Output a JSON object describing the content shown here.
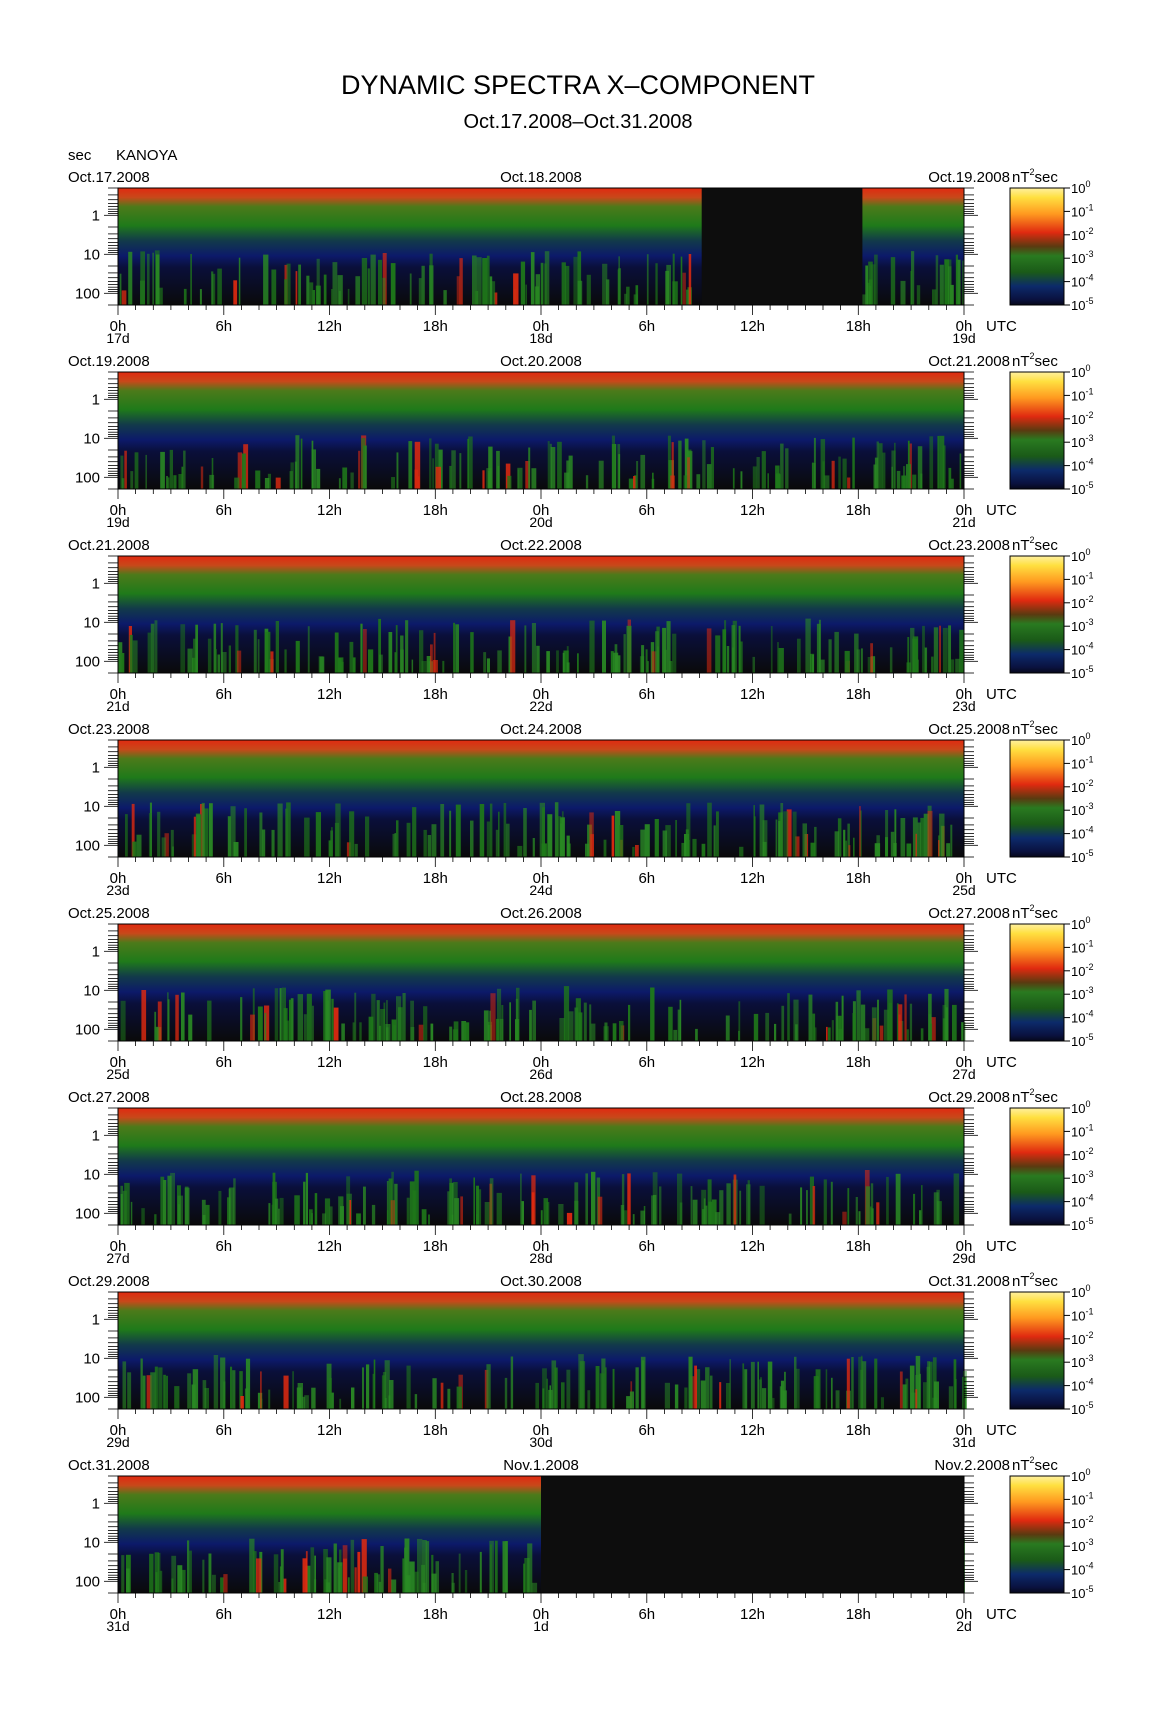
{
  "title": "DYNAMIC SPECTRA X–COMPONENT",
  "subtitle": "Oct.17.2008–Oct.31.2008",
  "y_unit_label": "sec",
  "station": "KANOYA",
  "colorbar_unit": "nT",
  "colorbar_unit_exp": "2",
  "colorbar_unit_suffix": "sec",
  "colorbar_exponents": [
    "0",
    "-1",
    "-2",
    "-3",
    "-4",
    "-5"
  ],
  "colorbar_base": "10",
  "x_unit_label": "UTC",
  "colors": {
    "background_black": "#0a0a0a",
    "low_blue": "#0c1a6a",
    "mid_green": "#1f7a1a",
    "high_red": "#e02a10",
    "peak_yellow": "#ffe040"
  },
  "chart_data": [
    {
      "type": "heatmap",
      "date_left": "Oct.17.2008",
      "date_mid": "Oct.18.2008",
      "date_right": "Oct.19.2008",
      "day_labels": [
        "17d",
        "18d",
        "19d"
      ],
      "hour_labels": [
        "0h",
        "6h",
        "12h",
        "18h",
        "0h",
        "6h",
        "12h",
        "18h",
        "0h"
      ],
      "y_ticks": [
        "1",
        "10",
        "100"
      ],
      "ylim_sec": [
        0.2,
        200
      ],
      "scale": "log",
      "data_gap_frac": [
        [
          0.69,
          0.88
        ]
      ]
    },
    {
      "type": "heatmap",
      "date_left": "Oct.19.2008",
      "date_mid": "Oct.20.2008",
      "date_right": "Oct.21.2008",
      "day_labels": [
        "19d",
        "20d",
        "21d"
      ],
      "hour_labels": [
        "0h",
        "6h",
        "12h",
        "18h",
        "0h",
        "6h",
        "12h",
        "18h",
        "0h"
      ],
      "y_ticks": [
        "1",
        "10",
        "100"
      ],
      "ylim_sec": [
        0.2,
        200
      ],
      "scale": "log",
      "data_gap_frac": []
    },
    {
      "type": "heatmap",
      "date_left": "Oct.21.2008",
      "date_mid": "Oct.22.2008",
      "date_right": "Oct.23.2008",
      "day_labels": [
        "21d",
        "22d",
        "23d"
      ],
      "hour_labels": [
        "0h",
        "6h",
        "12h",
        "18h",
        "0h",
        "6h",
        "12h",
        "18h",
        "0h"
      ],
      "y_ticks": [
        "1",
        "10",
        "100"
      ],
      "ylim_sec": [
        0.2,
        200
      ],
      "scale": "log",
      "data_gap_frac": []
    },
    {
      "type": "heatmap",
      "date_left": "Oct.23.2008",
      "date_mid": "Oct.24.2008",
      "date_right": "Oct.25.2008",
      "day_labels": [
        "23d",
        "24d",
        "25d"
      ],
      "hour_labels": [
        "0h",
        "6h",
        "12h",
        "18h",
        "0h",
        "6h",
        "12h",
        "18h",
        "0h"
      ],
      "y_ticks": [
        "1",
        "10",
        "100"
      ],
      "ylim_sec": [
        0.2,
        200
      ],
      "scale": "log",
      "data_gap_frac": []
    },
    {
      "type": "heatmap",
      "date_left": "Oct.25.2008",
      "date_mid": "Oct.26.2008",
      "date_right": "Oct.27.2008",
      "day_labels": [
        "25d",
        "26d",
        "27d"
      ],
      "hour_labels": [
        "0h",
        "6h",
        "12h",
        "18h",
        "0h",
        "6h",
        "12h",
        "18h",
        "0h"
      ],
      "y_ticks": [
        "1",
        "10",
        "100"
      ],
      "ylim_sec": [
        0.2,
        200
      ],
      "scale": "log",
      "data_gap_frac": []
    },
    {
      "type": "heatmap",
      "date_left": "Oct.27.2008",
      "date_mid": "Oct.28.2008",
      "date_right": "Oct.29.2008",
      "day_labels": [
        "27d",
        "28d",
        "29d"
      ],
      "hour_labels": [
        "0h",
        "6h",
        "12h",
        "18h",
        "0h",
        "6h",
        "12h",
        "18h",
        "0h"
      ],
      "y_ticks": [
        "1",
        "10",
        "100"
      ],
      "ylim_sec": [
        0.2,
        200
      ],
      "scale": "log",
      "data_gap_frac": []
    },
    {
      "type": "heatmap",
      "date_left": "Oct.29.2008",
      "date_mid": "Oct.30.2008",
      "date_right": "Oct.31.2008",
      "day_labels": [
        "29d",
        "30d",
        "31d"
      ],
      "hour_labels": [
        "0h",
        "6h",
        "12h",
        "18h",
        "0h",
        "6h",
        "12h",
        "18h",
        "0h"
      ],
      "y_ticks": [
        "1",
        "10",
        "100"
      ],
      "ylim_sec": [
        0.2,
        200
      ],
      "scale": "log",
      "data_gap_frac": []
    },
    {
      "type": "heatmap",
      "date_left": "Oct.31.2008",
      "date_mid": "Nov.1.2008",
      "date_right": "Nov.2.2008",
      "day_labels": [
        "31d",
        "1d",
        "2d"
      ],
      "hour_labels": [
        "0h",
        "6h",
        "12h",
        "18h",
        "0h",
        "6h",
        "12h",
        "18h",
        "0h"
      ],
      "y_ticks": [
        "1",
        "10",
        "100"
      ],
      "ylim_sec": [
        0.2,
        200
      ],
      "scale": "log",
      "data_gap_frac": [
        [
          0.5,
          1.0
        ]
      ]
    }
  ]
}
